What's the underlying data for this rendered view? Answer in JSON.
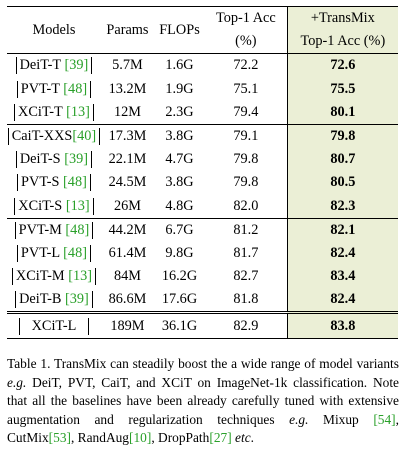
{
  "header": {
    "models": "Models",
    "params": "Params",
    "flops": "FLOPs",
    "acc_line1": "Top-1 Acc",
    "acc_line2": "(%)",
    "tm_line1": "+TransMix",
    "tm_line2": "Top-1 Acc (%)"
  },
  "rows": [
    {
      "model": "DeiT-T ",
      "cite": "[39]",
      "params": "5.7M",
      "flops": "1.6G",
      "acc": "72.2",
      "tm": "72.6"
    },
    {
      "model": "PVT-T ",
      "cite": "[48]",
      "params": "13.2M",
      "flops": "1.9G",
      "acc": "75.1",
      "tm": "75.5"
    },
    {
      "model": "XCiT-T ",
      "cite": "[13]",
      "params": "12M",
      "flops": "2.3G",
      "acc": "79.4",
      "tm": "80.1"
    },
    {
      "model": "CaiT-XXS",
      "cite": "[40]",
      "params": "17.3M",
      "flops": "3.8G",
      "acc": "79.1",
      "tm": "79.8"
    },
    {
      "model": "DeiT-S ",
      "cite": "[39]",
      "params": "22.1M",
      "flops": "4.7G",
      "acc": "79.8",
      "tm": "80.7"
    },
    {
      "model": "PVT-S ",
      "cite": "[48]",
      "params": "24.5M",
      "flops": "3.8G",
      "acc": "79.8",
      "tm": "80.5"
    },
    {
      "model": "XCiT-S ",
      "cite": "[13]",
      "params": "26M",
      "flops": "4.8G",
      "acc": "82.0",
      "tm": "82.3"
    },
    {
      "model": "PVT-M ",
      "cite": "[48]",
      "params": "44.2M",
      "flops": "6.7G",
      "acc": "81.2",
      "tm": "82.1"
    },
    {
      "model": "PVT-L ",
      "cite": "[48]",
      "params": "61.4M",
      "flops": "9.8G",
      "acc": "81.7",
      "tm": "82.4"
    },
    {
      "model": "XCiT-M ",
      "cite": "[13]",
      "params": "84M",
      "flops": "16.2G",
      "acc": "82.7",
      "tm": "83.4"
    },
    {
      "model": "DeiT-B ",
      "cite": "[39]",
      "params": "86.6M",
      "flops": "17.6G",
      "acc": "81.8",
      "tm": "82.4"
    },
    {
      "model": "XCiT-L",
      "cite": "",
      "params": "189M",
      "flops": "36.1G",
      "acc": "82.9",
      "tm": "83.8"
    }
  ],
  "caption": {
    "p1": "Table 1. TransMix can steadily boost the a wide range of model variants ",
    "eg1": "e.g.",
    "p2": " DeiT, PVT, CaiT, and XCiT on ImageNet-1k classification. Note that all the baselines have been already carefully tuned with extensive augmentation and regularization techniques ",
    "eg2": "e.g.",
    "p3": " Mixup ",
    "c1": "[54]",
    "p4": ", CutMix",
    "c2": "[53]",
    "p5": ", RandAug",
    "c3": "[10]",
    "p6": ", DropPath",
    "c4": "[27]",
    "p7": " ",
    "etc": "etc",
    "p8": "."
  }
}
